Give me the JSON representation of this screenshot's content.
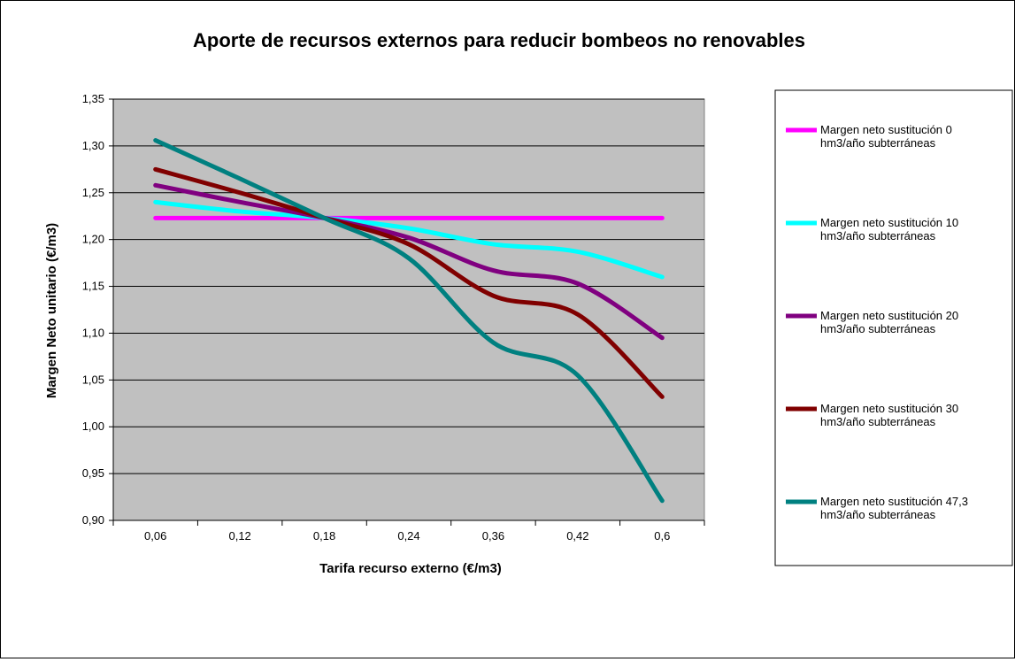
{
  "chart_data": {
    "type": "line",
    "title": "Aporte de recursos externos para reducir bombeos no renovables",
    "xlabel": "Tarifa recurso externo (€/m3)",
    "ylabel": "Margen Neto unitario (€/m3)",
    "categories": [
      "0,06",
      "0,12",
      "0,18",
      "0,24",
      "0,36",
      "0,42",
      "0,6"
    ],
    "y_ticks": [
      "0,90",
      "0,95",
      "1,00",
      "1,05",
      "1,10",
      "1,15",
      "1,20",
      "1,25",
      "1,30",
      "1,35"
    ],
    "ylim": [
      0.9,
      1.35
    ],
    "grid": "horizontal",
    "legend_position": "right",
    "plot_background": "#c0c0c0",
    "series": [
      {
        "name_lines": [
          "Margen neto sustitución 0",
          "hm3/año subterráneas"
        ],
        "color": "#ff00ff",
        "values": [
          1.223,
          1.223,
          1.223,
          1.223,
          1.223,
          1.223,
          1.223
        ]
      },
      {
        "name_lines": [
          "Margen neto sustitución 10",
          "hm3/año subterráneas"
        ],
        "color": "#00ffff",
        "values": [
          1.24,
          1.23,
          1.223,
          1.212,
          1.195,
          1.187,
          1.16
        ]
      },
      {
        "name_lines": [
          "Margen neto sustitución 20",
          "hm3/año subterráneas"
        ],
        "color": "#800080",
        "values": [
          1.258,
          1.24,
          1.223,
          1.202,
          1.167,
          1.153,
          1.095
        ]
      },
      {
        "name_lines": [
          "Margen neto sustitución 30",
          "hm3/año subterráneas"
        ],
        "color": "#800000",
        "values": [
          1.275,
          1.25,
          1.223,
          1.195,
          1.14,
          1.12,
          1.032
        ]
      },
      {
        "name_lines": [
          "Margen neto sustitución 47,3",
          "hm3/año subterráneas"
        ],
        "color": "#008080",
        "values": [
          1.306,
          1.265,
          1.223,
          1.18,
          1.09,
          1.055,
          0.921
        ]
      }
    ]
  }
}
